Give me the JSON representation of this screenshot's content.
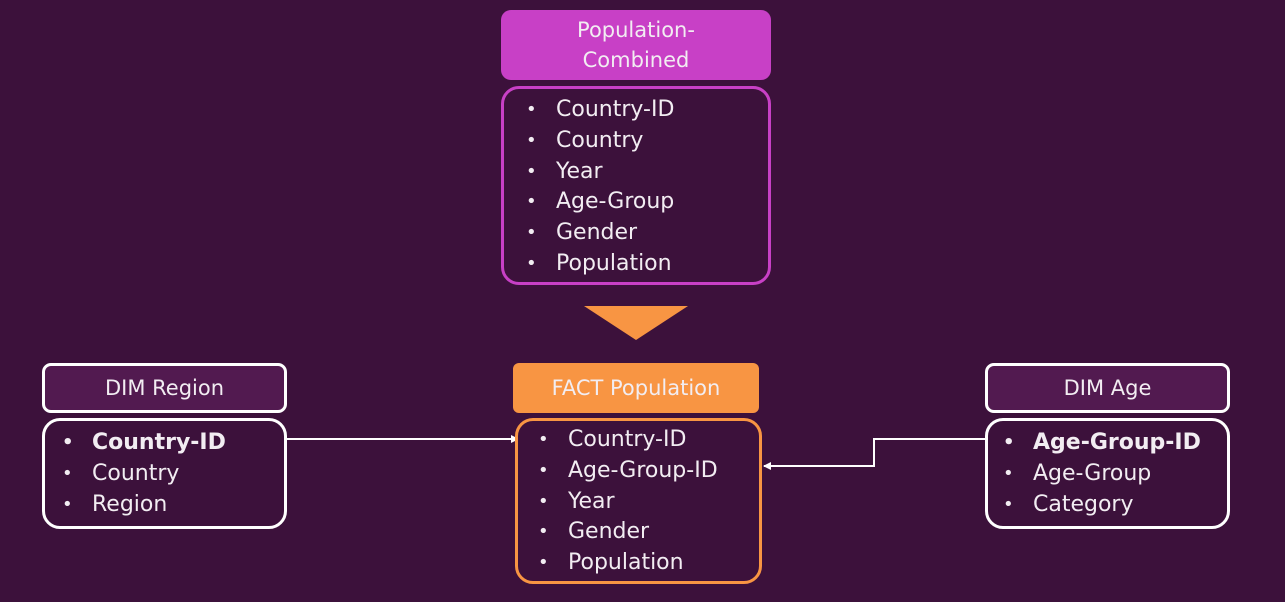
{
  "population_combined": {
    "title": "Population-\nCombined",
    "fields": [
      "Country-ID",
      "Country",
      "Year",
      "Age-Group",
      "Gender",
      "Population"
    ]
  },
  "dim_region": {
    "title": "DIM Region",
    "fields": [
      "Country-ID",
      "Country",
      "Region"
    ]
  },
  "fact_population": {
    "title": "FACT Population",
    "fields": [
      "Country-ID",
      "Age-Group-ID",
      "Year",
      "Gender",
      "Population"
    ]
  },
  "dim_age": {
    "title": "DIM Age",
    "fields": [
      "Age-Group-ID",
      "Age-Group",
      "Category"
    ]
  },
  "colors": {
    "background": "#3c113b",
    "magenta": "#c840c6",
    "orange": "#f89543",
    "dim_header": "#521a50",
    "white": "#ffffff"
  }
}
